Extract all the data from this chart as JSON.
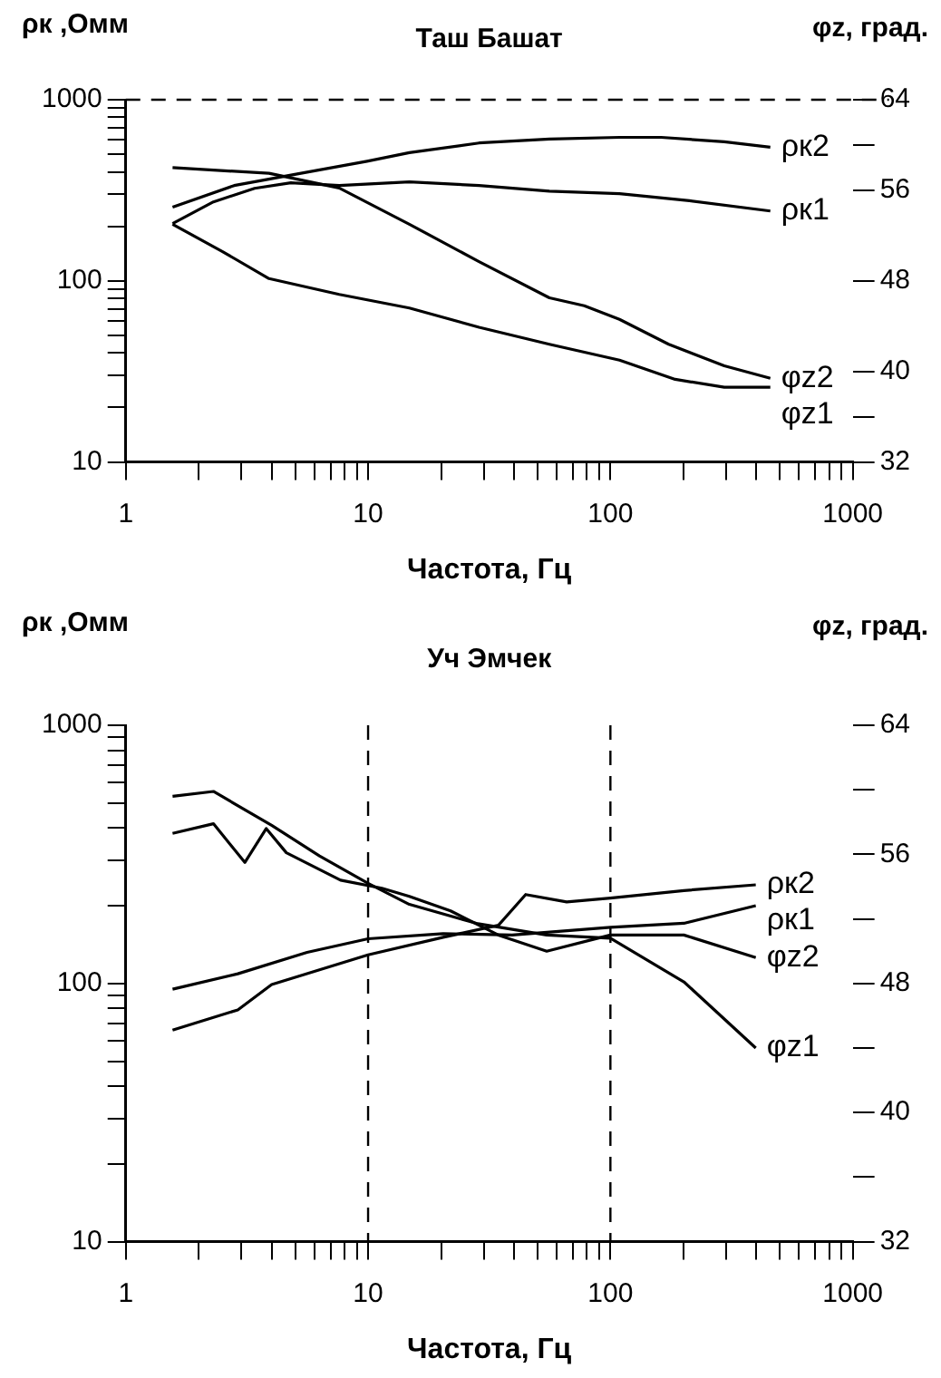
{
  "chart_data": [
    {
      "type": "line",
      "title": "Таш Башат",
      "xlabel": "Частота, Гц",
      "ylabel": "ρк ,Омм",
      "y2label": "φz, град.",
      "log": "xy",
      "grid": false,
      "legend": "right",
      "marker": "none",
      "line_style": "solid",
      "xlim": [
        1,
        1000
      ],
      "xticks": [
        1,
        {
          "value": 2,
          "label": null
        },
        {
          "value": 3,
          "label": null
        },
        {
          "value": 4,
          "label": null
        },
        {
          "value": 5,
          "label": null
        },
        {
          "value": 6,
          "label": null
        },
        {
          "value": 7,
          "label": null
        },
        {
          "value": 8,
          "label": null
        },
        {
          "value": 9,
          "label": null
        },
        10,
        {
          "value": 20,
          "label": null
        },
        {
          "value": 30,
          "label": null
        },
        {
          "value": 40,
          "label": null
        },
        {
          "value": 50,
          "label": null
        },
        {
          "value": 60,
          "label": null
        },
        {
          "value": 70,
          "label": null
        },
        {
          "value": 80,
          "label": null
        },
        {
          "value": 90,
          "label": null
        },
        100,
        {
          "value": 200,
          "label": null
        },
        {
          "value": 300,
          "label": null
        },
        {
          "value": 400,
          "label": null
        },
        {
          "value": 500,
          "label": null
        },
        {
          "value": 600,
          "label": null
        },
        {
          "value": 700,
          "label": null
        },
        {
          "value": 800,
          "label": null
        },
        {
          "value": 900,
          "label": null
        },
        1000
      ],
      "ylim": [
        10,
        1000
      ],
      "yticks": [
        10,
        {
          "value": 20,
          "label": null
        },
        {
          "value": 30,
          "label": null
        },
        {
          "value": 40,
          "label": null
        },
        {
          "value": 50,
          "label": null
        },
        {
          "value": 60,
          "label": null
        },
        {
          "value": 70,
          "label": null
        },
        {
          "value": 80,
          "label": null
        },
        {
          "value": 90,
          "label": null
        },
        100,
        {
          "value": 200,
          "label": null
        },
        {
          "value": 300,
          "label": null
        },
        {
          "value": 400,
          "label": null
        },
        {
          "value": 500,
          "label": null
        },
        {
          "value": 600,
          "label": null
        },
        {
          "value": 700,
          "label": null
        },
        {
          "value": 800,
          "label": null
        },
        {
          "value": 900,
          "label": null
        },
        1000
      ],
      "y2lim": [
        32,
        64
      ],
      "y2ticks": [
        32,
        {
          "value": 36,
          "label": null
        },
        40,
        48,
        56,
        {
          "value": 60,
          "label": null
        },
        64
      ],
      "ref_lines": [
        {
          "axis": "y",
          "value": 1000,
          "color": "#000000",
          "line_style": "dashed"
        }
      ],
      "series": [
        {
          "name": "ρк2",
          "color": "#000000",
          "x": [
            1.56,
            2.8,
            5.1,
            9.9,
            14.8,
            28.7,
            56,
            109,
            162,
            295,
            457
          ],
          "values": [
            255,
            336,
            389,
            457,
            510,
            577,
            606,
            620,
            620,
            586,
            547
          ]
        },
        {
          "name": "ρк1",
          "color": "#000000",
          "x": [
            1.56,
            2.3,
            3.4,
            4.8,
            7.6,
            14.8,
            28.7,
            56,
            109,
            212,
            457
          ],
          "values": [
            207,
            273,
            324,
            348,
            336,
            352,
            336,
            313,
            303,
            277,
            243
          ]
        },
        {
          "name": "φz2",
          "color": "#000000",
          "axis": "y2",
          "x": [
            1.56,
            3.9,
            7.6,
            14.8,
            28.7,
            56,
            78,
            109,
            174,
            295,
            457
          ],
          "values": [
            58.0,
            57.5,
            56.2,
            53.0,
            49.7,
            46.5,
            45.8,
            44.6,
            42.4,
            40.5,
            39.4
          ]
        },
        {
          "name": "φz1",
          "color": "#000000",
          "axis": "y2",
          "x": [
            1.56,
            2.5,
            3.9,
            7.6,
            14.8,
            28.7,
            56,
            109,
            185,
            295,
            457
          ],
          "values": [
            53.0,
            50.6,
            48.2,
            46.8,
            45.6,
            43.9,
            42.4,
            41.0,
            39.3,
            38.6,
            38.6
          ]
        }
      ]
    },
    {
      "type": "line",
      "title": "Уч Эмчек",
      "xlabel": "Частота, Гц",
      "ylabel": "ρк ,Омм",
      "y2label": "φz, град.",
      "log": "xy",
      "grid": false,
      "legend": "right",
      "marker": "none",
      "line_style": "solid",
      "xlim": [
        1,
        1000
      ],
      "xticks": [
        1,
        {
          "value": 2,
          "label": null
        },
        {
          "value": 3,
          "label": null
        },
        {
          "value": 4,
          "label": null
        },
        {
          "value": 5,
          "label": null
        },
        {
          "value": 6,
          "label": null
        },
        {
          "value": 7,
          "label": null
        },
        {
          "value": 8,
          "label": null
        },
        {
          "value": 9,
          "label": null
        },
        10,
        {
          "value": 20,
          "label": null
        },
        {
          "value": 30,
          "label": null
        },
        {
          "value": 40,
          "label": null
        },
        {
          "value": 50,
          "label": null
        },
        {
          "value": 60,
          "label": null
        },
        {
          "value": 70,
          "label": null
        },
        {
          "value": 80,
          "label": null
        },
        {
          "value": 90,
          "label": null
        },
        100,
        {
          "value": 200,
          "label": null
        },
        {
          "value": 300,
          "label": null
        },
        {
          "value": 400,
          "label": null
        },
        {
          "value": 500,
          "label": null
        },
        {
          "value": 600,
          "label": null
        },
        {
          "value": 700,
          "label": null
        },
        {
          "value": 800,
          "label": null
        },
        {
          "value": 900,
          "label": null
        },
        1000
      ],
      "ylim": [
        10,
        1000
      ],
      "yticks": [
        10,
        {
          "value": 20,
          "label": null
        },
        {
          "value": 30,
          "label": null
        },
        {
          "value": 40,
          "label": null
        },
        {
          "value": 50,
          "label": null
        },
        {
          "value": 60,
          "label": null
        },
        {
          "value": 70,
          "label": null
        },
        {
          "value": 80,
          "label": null
        },
        {
          "value": 90,
          "label": null
        },
        100,
        {
          "value": 200,
          "label": null
        },
        {
          "value": 300,
          "label": null
        },
        {
          "value": 400,
          "label": null
        },
        {
          "value": 500,
          "label": null
        },
        {
          "value": 600,
          "label": null
        },
        {
          "value": 700,
          "label": null
        },
        {
          "value": 800,
          "label": null
        },
        {
          "value": 900,
          "label": null
        },
        1000
      ],
      "y2lim": [
        32,
        64
      ],
      "y2ticks": [
        32,
        {
          "value": 36,
          "label": null
        },
        40,
        {
          "value": 44,
          "label": null
        },
        48,
        {
          "value": 52,
          "label": null
        },
        56,
        {
          "value": 60,
          "label": null
        },
        64
      ],
      "ref_lines": [
        {
          "axis": "x",
          "value": 10,
          "color": "#000000",
          "line_style": "dashed"
        },
        {
          "axis": "x",
          "value": 100,
          "color": "#000000",
          "line_style": "dashed"
        }
      ],
      "series": [
        {
          "name": "ρк1",
          "color": "#000000",
          "x": [
            1.56,
            2.9,
            5.6,
            10,
            20.4,
            39.3,
            100,
            201,
            398
          ],
          "values": [
            95,
            109,
            132,
            149,
            156,
            154,
            165,
            171,
            200
          ]
        },
        {
          "name": "ρк2",
          "color": "#000000",
          "x": [
            1.56,
            2.9,
            4.0,
            10,
            20.4,
            34.5,
            44.7,
            66,
            100,
            201,
            398
          ],
          "values": [
            66,
            79,
            99,
            129,
            151,
            168,
            221,
            207,
            214,
            229,
            241
          ]
        },
        {
          "name": "φz2",
          "color": "#000000",
          "axis": "y2",
          "x": [
            1.56,
            2.3,
            3.1,
            3.8,
            4.6,
            7.7,
            11.4,
            14.8,
            21.9,
            34.5,
            54.6,
            100,
            201,
            398
          ],
          "values": [
            57.3,
            57.9,
            55.5,
            57.6,
            56.1,
            54.4,
            53.9,
            53.4,
            52.5,
            51.0,
            50.0,
            51.0,
            51.0,
            49.6
          ]
        },
        {
          "name": "φz1",
          "color": "#000000",
          "axis": "y2",
          "x": [
            1.56,
            2.3,
            4.0,
            6.3,
            10,
            14.8,
            28.4,
            54.6,
            100,
            201,
            398
          ],
          "values": [
            59.6,
            59.9,
            57.8,
            55.9,
            54.2,
            52.9,
            51.7,
            51.0,
            50.8,
            48.1,
            44.0
          ]
        }
      ]
    }
  ]
}
